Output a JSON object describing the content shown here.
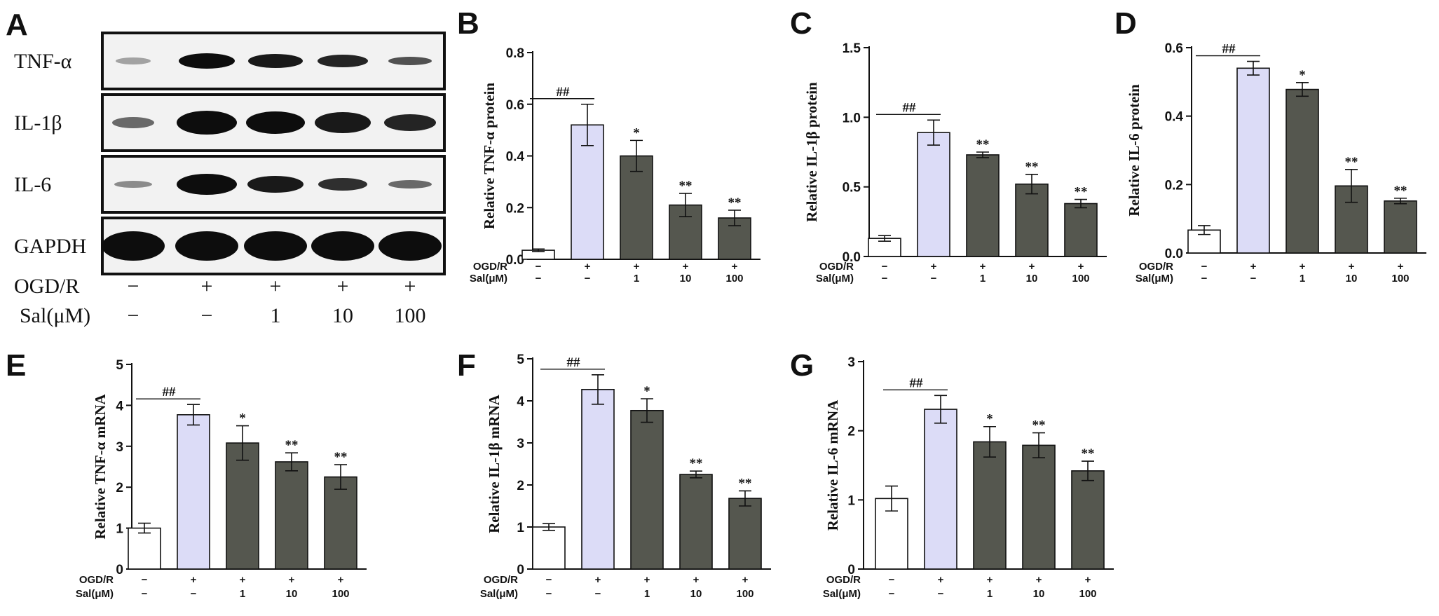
{
  "blot": {
    "letter": "A",
    "rows": [
      "TNF-α",
      "IL-1β",
      "IL-6",
      "GAPDH"
    ],
    "cond_labels": [
      "OGD/R",
      "Sal(μM)"
    ],
    "ogdr": [
      "−",
      "+",
      "+",
      "+",
      "+"
    ],
    "sal": [
      "−",
      "−",
      "1",
      "10",
      "100"
    ]
  },
  "chart_data": [
    {
      "letter": "B",
      "type": "bar",
      "ylabel": "Relative TNF-α  protein",
      "ylim": [
        0,
        0.8
      ],
      "ticks": [
        "0.0",
        "0.2",
        "0.4",
        "0.6",
        "0.8"
      ],
      "values": [
        0.035,
        0.52,
        0.4,
        0.21,
        0.16
      ],
      "errors": [
        0.005,
        0.08,
        0.06,
        0.045,
        0.03
      ],
      "sig": [
        "",
        "",
        "*",
        "**",
        "**"
      ],
      "hash": "##",
      "ogdr": [
        "−",
        "+",
        "+",
        "+",
        "+"
      ],
      "sal": [
        "−",
        "−",
        "1",
        "10",
        "100"
      ],
      "cond_labels": [
        "OGD/R",
        "Sal(μM)"
      ]
    },
    {
      "letter": "C",
      "type": "bar",
      "ylabel": "Relative  IL-1β  protein",
      "ylim": [
        0,
        1.5
      ],
      "ticks": [
        "0.0",
        "0.5",
        "1.0",
        "1.5"
      ],
      "values": [
        0.13,
        0.89,
        0.73,
        0.52,
        0.38
      ],
      "errors": [
        0.02,
        0.09,
        0.02,
        0.07,
        0.03
      ],
      "sig": [
        "",
        "",
        "**",
        "**",
        "**"
      ],
      "hash": "##",
      "ogdr": [
        "−",
        "+",
        "+",
        "+",
        "+"
      ],
      "sal": [
        "−",
        "−",
        "1",
        "10",
        "100"
      ],
      "cond_labels": [
        "OGD/R",
        "Sal(μM)"
      ]
    },
    {
      "letter": "D",
      "type": "bar",
      "ylabel": "Relative  IL-6 protein",
      "ylim": [
        0,
        0.6
      ],
      "ticks": [
        "0.0",
        "0.2",
        "0.4",
        "0.6"
      ],
      "values": [
        0.067,
        0.54,
        0.478,
        0.196,
        0.152
      ],
      "errors": [
        0.013,
        0.02,
        0.02,
        0.048,
        0.008
      ],
      "sig": [
        "",
        "",
        "*",
        "**",
        "**"
      ],
      "hash": "##",
      "ogdr": [
        "−",
        "+",
        "+",
        "+",
        "+"
      ],
      "sal": [
        "−",
        "−",
        "1",
        "10",
        "100"
      ],
      "cond_labels": [
        "OGD/R",
        "Sal(μM)"
      ]
    },
    {
      "letter": "E",
      "type": "bar",
      "ylabel": "Relative TNF-α  mRNA",
      "ylim": [
        0,
        5
      ],
      "ticks": [
        "0",
        "1",
        "2",
        "3",
        "4",
        "5"
      ],
      "values": [
        1.0,
        3.77,
        3.08,
        2.62,
        2.25
      ],
      "errors": [
        0.12,
        0.25,
        0.42,
        0.22,
        0.3
      ],
      "sig": [
        "",
        "",
        "*",
        "**",
        "**"
      ],
      "hash": "##",
      "ogdr": [
        "−",
        "+",
        "+",
        "+",
        "+"
      ],
      "sal": [
        "−",
        "−",
        "1",
        "10",
        "100"
      ],
      "cond_labels": [
        "OGD/R",
        "Sal(μM)"
      ]
    },
    {
      "letter": "F",
      "type": "bar",
      "ylabel": "Relative  IL-1β  mRNA",
      "ylim": [
        0,
        5
      ],
      "ticks": [
        "0",
        "1",
        "2",
        "3",
        "4",
        "5"
      ],
      "values": [
        1.0,
        4.27,
        3.77,
        2.25,
        1.68
      ],
      "errors": [
        0.08,
        0.35,
        0.28,
        0.08,
        0.18
      ],
      "sig": [
        "",
        "",
        "*",
        "**",
        "**"
      ],
      "hash": "##",
      "ogdr": [
        "−",
        "+",
        "+",
        "+",
        "+"
      ],
      "sal": [
        "−",
        "−",
        "1",
        "10",
        "100"
      ],
      "cond_labels": [
        "OGD/R",
        "Sal(μM)"
      ]
    },
    {
      "letter": "G",
      "type": "bar",
      "ylabel": "Relative  IL-6 mRNA",
      "ylim": [
        0,
        3
      ],
      "ticks": [
        "0",
        "1",
        "2",
        "3"
      ],
      "values": [
        1.02,
        2.31,
        1.84,
        1.79,
        1.42
      ],
      "errors": [
        0.18,
        0.2,
        0.22,
        0.18,
        0.14
      ],
      "sig": [
        "",
        "",
        "*",
        "**",
        "**"
      ],
      "hash": "##",
      "ogdr": [
        "−",
        "+",
        "+",
        "+",
        "+"
      ],
      "sal": [
        "−",
        "−",
        "1",
        "10",
        "100"
      ],
      "cond_labels": [
        "OGD/R",
        "Sal(μM)"
      ]
    }
  ],
  "colors": {
    "control": "#ffffff",
    "model": "#dcdcf7",
    "treated": "#55574f",
    "axis": "#111111",
    "band": "#0d0d0d"
  }
}
